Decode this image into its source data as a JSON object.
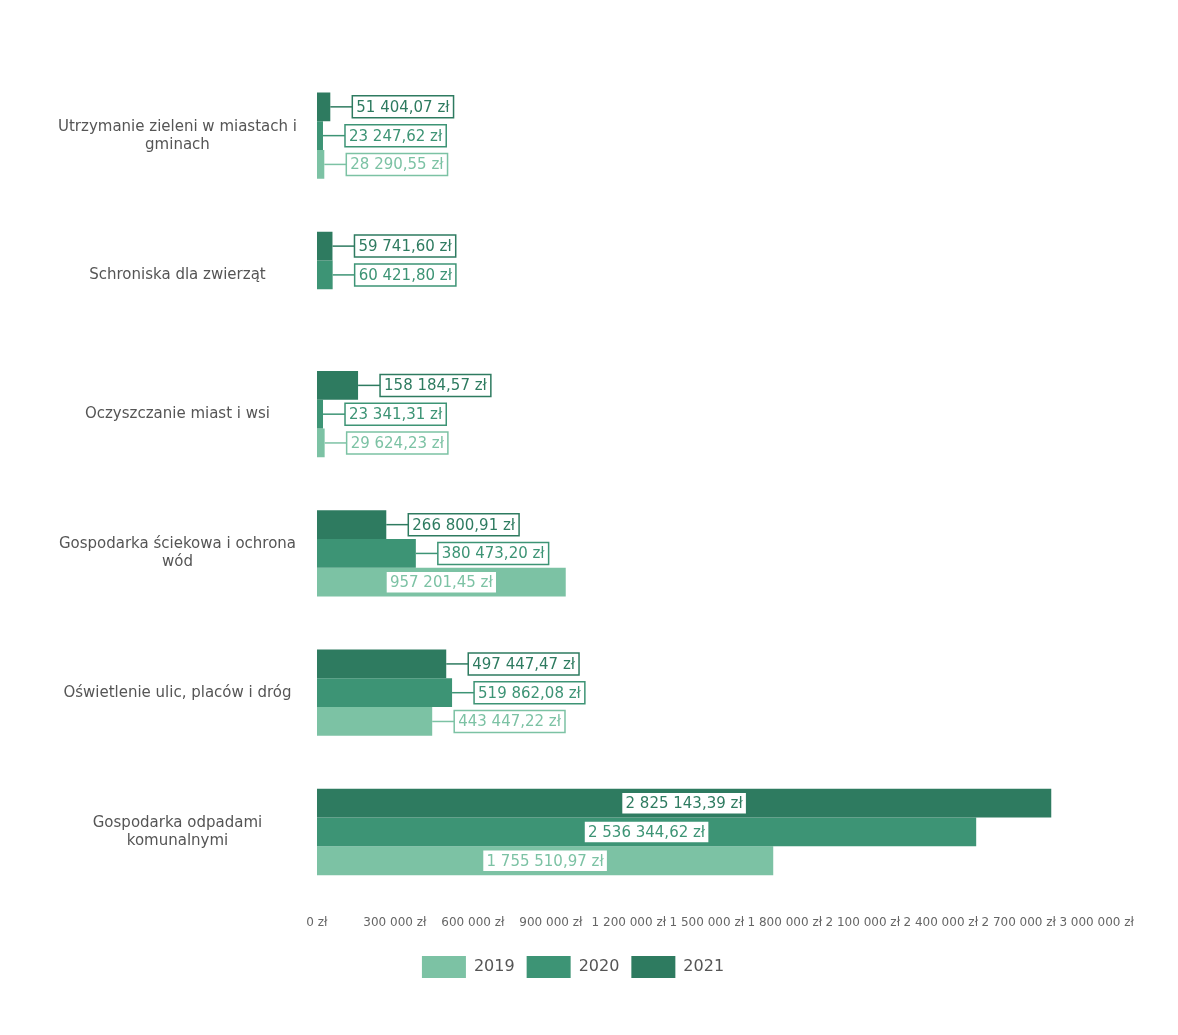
{
  "chart_data": {
    "type": "bar",
    "orientation": "horizontal",
    "categories": [
      "Utrzymanie zieleni w miastach i gminach",
      "Schroniska dla zwierząt",
      "Oczyszczanie miast i wsi",
      "Gospodarka ściekowa i ochrona wód",
      "Oświetlenie ulic, placów i dróg",
      "Gospodarka odpadami komunalnymi"
    ],
    "series": [
      {
        "name": "2021",
        "color": "#2e7b60",
        "values": [
          51404.07,
          59741.6,
          158184.57,
          266800.91,
          497447.47,
          2825143.39
        ],
        "value_labels": [
          "51 404,07 zł",
          "59 741,60 zł",
          "158 184,57 zł",
          "266 800,91 zł",
          "497 447,47 zł",
          "2 825 143,39 zł"
        ]
      },
      {
        "name": "2020",
        "color": "#3d9475",
        "values": [
          23247.62,
          60421.8,
          23341.31,
          380473.2,
          519862.08,
          2536344.62
        ],
        "value_labels": [
          "23 247,62 zł",
          "60 421,80 zł",
          "23 341,31 zł",
          "380 473,20 zł",
          "519 862,08 zł",
          "2 536 344,62 zł"
        ]
      },
      {
        "name": "2019",
        "color": "#7cc2a4",
        "values": [
          28290.55,
          null,
          29624.23,
          957201.45,
          443447.22,
          1755510.97
        ],
        "value_labels": [
          "28 290,55 zł",
          null,
          "29 624,23 zł",
          "957 201,45 zł",
          "443 447,22 zł",
          "1 755 510,97 zł"
        ]
      }
    ],
    "xlim": [
      0,
      3000000
    ],
    "xticks": [
      {
        "value": 0,
        "label": "0 zł"
      },
      {
        "value": 300000,
        "label": "300 000 zł"
      },
      {
        "value": 600000,
        "label": "600 000 zł"
      },
      {
        "value": 900000,
        "label": "900 000 zł"
      },
      {
        "value": 1200000,
        "label": "1 200 000 zł"
      },
      {
        "value": 1500000,
        "label": "1 500 000 zł"
      },
      {
        "value": 1800000,
        "label": "1 800 000 zł"
      },
      {
        "value": 2100000,
        "label": "2 100 000 zł"
      },
      {
        "value": 2400000,
        "label": "2 400 000 zł"
      },
      {
        "value": 2700000,
        "label": "2 700 000 zł"
      },
      {
        "value": 3000000,
        "label": "3 000 000 zł"
      }
    ],
    "grid": false,
    "legend": "bottom"
  }
}
